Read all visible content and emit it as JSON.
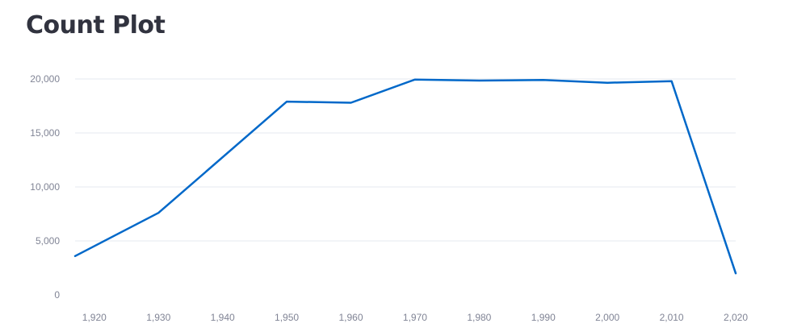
{
  "title": "Count Plot",
  "chart_data": {
    "type": "line",
    "title": "Count Plot",
    "xlabel": "",
    "ylabel": "",
    "x": [
      1917,
      1930,
      1950,
      1960,
      1970,
      1980,
      1990,
      2000,
      2010,
      2020
    ],
    "series": [
      {
        "color": "#0068c9",
        "values": [
          3600,
          7600,
          17900,
          17800,
          19950,
          19850,
          19900,
          19650,
          19800,
          2000
        ]
      }
    ],
    "xlim": [
      1917,
      2020
    ],
    "ylim": [
      0,
      20000
    ],
    "x_ticks": [
      1920,
      1930,
      1940,
      1950,
      1960,
      1970,
      1980,
      1990,
      2000,
      2010,
      2020
    ],
    "x_tick_labels": [
      "1,920",
      "1,930",
      "1,940",
      "1,950",
      "1,960",
      "1,970",
      "1,980",
      "1,990",
      "2,000",
      "2,010",
      "2,020"
    ],
    "y_ticks": [
      0,
      5000,
      10000,
      15000,
      20000
    ],
    "y_tick_labels": [
      "0",
      "5,000",
      "10,000",
      "15,000",
      "20,000"
    ],
    "grid": "horizontal",
    "legend": "none",
    "gridline_color": "#e6e9ef"
  }
}
